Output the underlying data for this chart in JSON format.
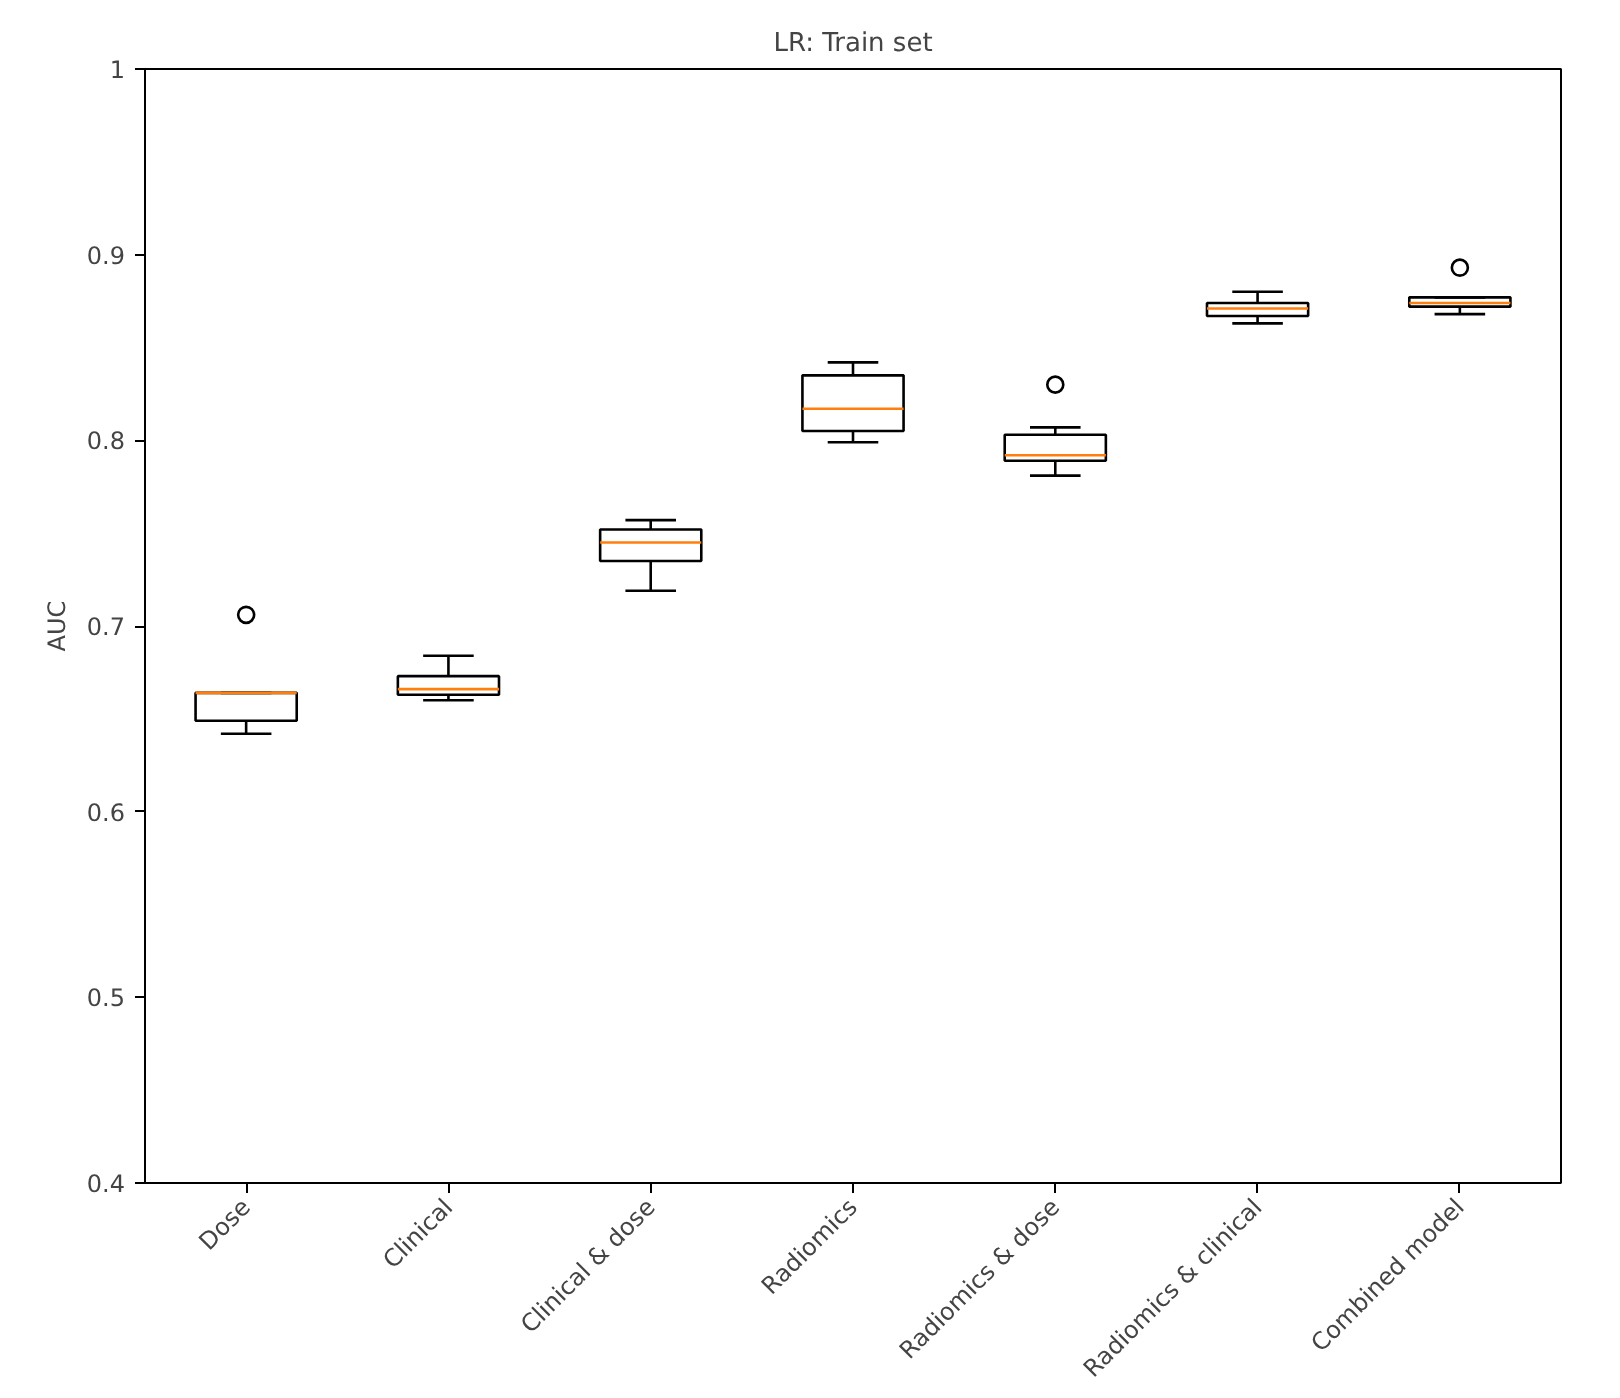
{
  "chart_data": {
    "type": "box",
    "title": "LR: Train set",
    "ylabel": "AUC",
    "categories": [
      "Dose",
      "Clinical",
      "Clinical & dose",
      "Radiomics",
      "Radiomics & dose",
      "Radiomics & clinical",
      "Combined model"
    ],
    "boxes": [
      {
        "low": 0.642,
        "q1": 0.649,
        "median": 0.664,
        "q3": 0.664,
        "high": 0.664,
        "outliers": [
          0.706
        ]
      },
      {
        "low": 0.66,
        "q1": 0.663,
        "median": 0.666,
        "q3": 0.673,
        "high": 0.684
      },
      {
        "low": 0.719,
        "q1": 0.735,
        "median": 0.745,
        "q3": 0.752,
        "high": 0.757
      },
      {
        "low": 0.799,
        "q1": 0.805,
        "median": 0.817,
        "q3": 0.835,
        "high": 0.842
      },
      {
        "low": 0.781,
        "q1": 0.789,
        "median": 0.792,
        "q3": 0.803,
        "high": 0.807,
        "outliers": [
          0.83
        ]
      },
      {
        "low": 0.863,
        "q1": 0.867,
        "median": 0.871,
        "q3": 0.874,
        "high": 0.88
      },
      {
        "low": 0.868,
        "q1": 0.872,
        "median": 0.874,
        "q3": 0.877,
        "high": 0.877,
        "outliers": [
          0.893
        ]
      }
    ],
    "ylim": [
      0.4,
      1.0
    ],
    "yticks": [
      0.4,
      0.5,
      0.6,
      0.7,
      0.8,
      0.9,
      1.0
    ],
    "grid": false
  }
}
